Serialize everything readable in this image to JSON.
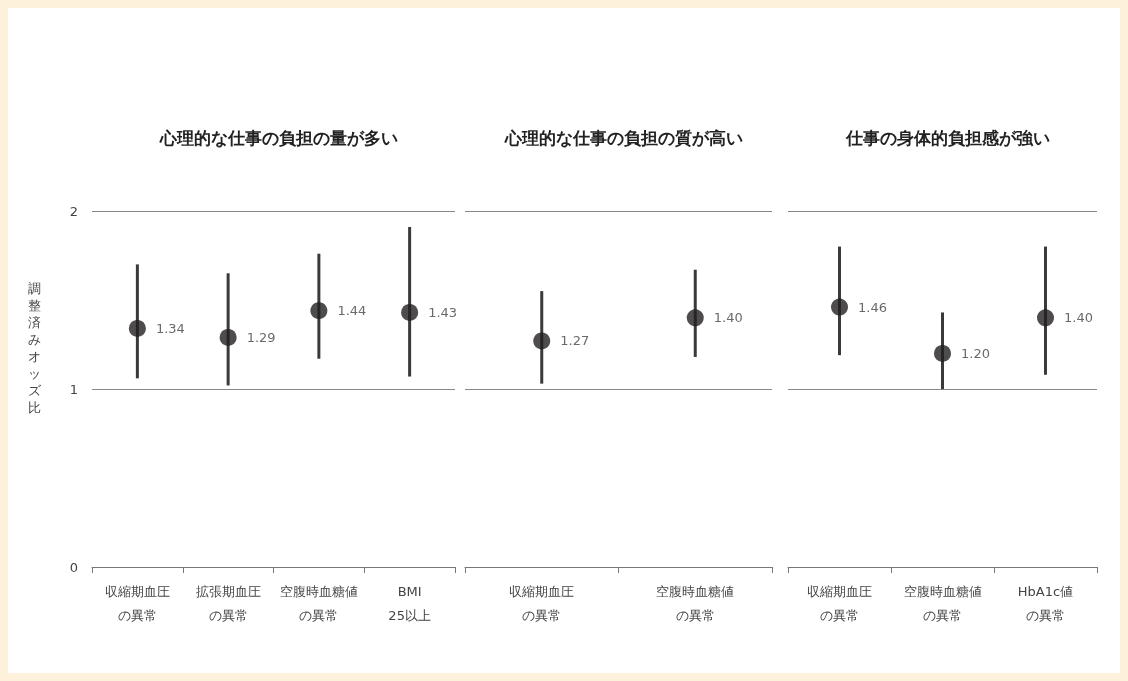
{
  "chart_data": [
    {
      "type": "scatter",
      "title": "心理的な仕事の負担の量が多い",
      "ylabel": "調整済みオッズ比",
      "categories": [
        "収縮期血圧の異常",
        "拡張期血圧の異常",
        "空腹時血糖値の異常",
        "BMI 25以上"
      ],
      "color": "#231f20",
      "values": [
        1.34,
        1.29,
        1.44,
        1.43
      ],
      "value_labels": [
        "1.34",
        "1.29",
        "1.44",
        "1.43"
      ],
      "errors": [
        [
          1.06,
          1.7
        ],
        [
          1.02,
          1.65
        ],
        [
          1.17,
          1.76
        ],
        [
          1.07,
          1.91
        ]
      ],
      "ylim": [
        0,
        2
      ],
      "yticks": [
        0,
        1,
        2
      ],
      "grid": "y",
      "marker": "circle"
    },
    {
      "type": "scatter",
      "title": "心理的な仕事の負担の質が高い",
      "categories": [
        "収縮期血圧の異常",
        "空腹時血糖値の異常"
      ],
      "color": "#231f20",
      "values": [
        1.27,
        1.4
      ],
      "value_labels": [
        "1.27",
        "1.40"
      ],
      "errors": [
        [
          1.03,
          1.55
        ],
        [
          1.18,
          1.67
        ]
      ],
      "ylim": [
        0,
        2
      ],
      "yticks": [
        0,
        1,
        2
      ],
      "grid": "y",
      "marker": "circle",
      "tick_labels": "x"
    },
    {
      "type": "scatter",
      "title": "仕事の身体的負担感が強い",
      "categories": [
        "収縮期血圧の異常",
        "空腹時血糖値の異常",
        "HbA1c値の異常"
      ],
      "color": "#231f20",
      "values": [
        1.46,
        1.2,
        1.4
      ],
      "value_labels": [
        "1.46",
        "1.20",
        "1.40"
      ],
      "errors": [
        [
          1.19,
          1.8
        ],
        [
          1.0,
          1.43
        ],
        [
          1.08,
          1.8
        ]
      ],
      "ylim": [
        0,
        2
      ],
      "yticks": [
        0,
        1,
        2
      ],
      "grid": "y",
      "marker": "circle",
      "tick_labels": "x"
    }
  ]
}
